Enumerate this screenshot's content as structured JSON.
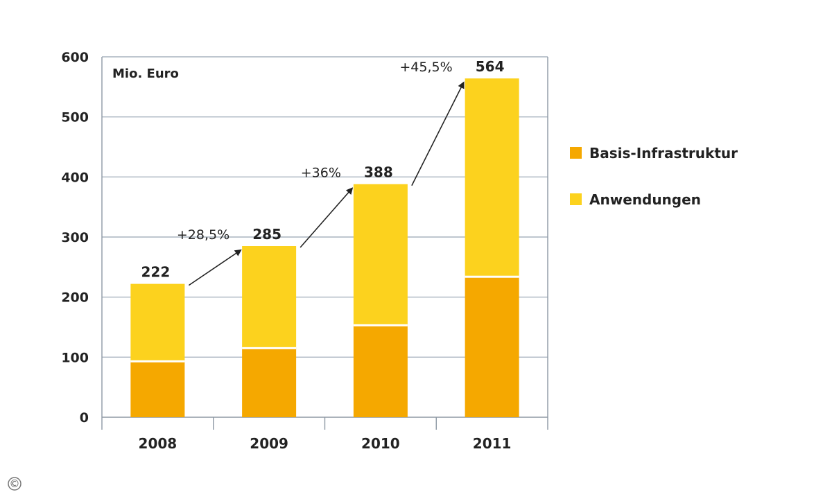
{
  "chart_data": {
    "type": "bar",
    "stacked": true,
    "unit_label": "Mio. Euro",
    "categories": [
      "2008",
      "2009",
      "2010",
      "2011"
    ],
    "series": [
      {
        "name": "Basis-Infrastruktur",
        "values": [
          93,
          115,
          153,
          234
        ],
        "color": "#f5a800"
      },
      {
        "name": "Anwendungen",
        "values": [
          129,
          170,
          235,
          330
        ],
        "color": "#fcd21e"
      }
    ],
    "totals": [
      "222",
      "285",
      "388",
      "564"
    ],
    "growth_labels": [
      "+28,5%",
      "+36%",
      "+45,5%"
    ],
    "ylim": [
      0,
      600
    ],
    "yticks": [
      0,
      100,
      200,
      300,
      400,
      500,
      600
    ],
    "grid": true,
    "legend": "right"
  },
  "copyright_symbol": "©"
}
